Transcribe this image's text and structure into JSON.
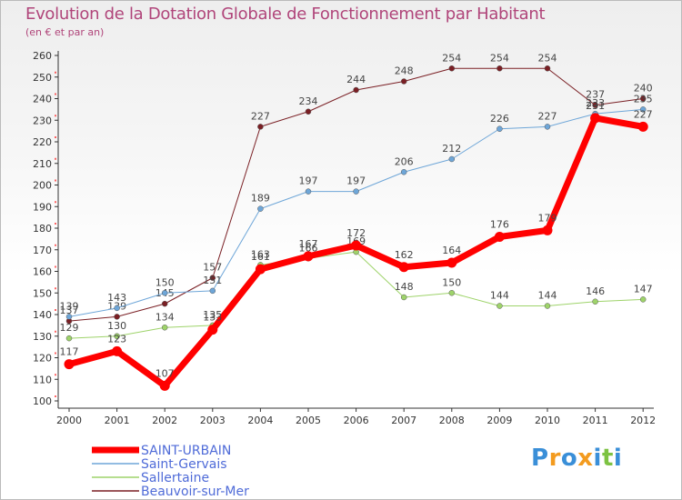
{
  "chart_data": {
    "type": "line",
    "title": "Evolution de la Dotation Globale de Fonctionnement par Habitant",
    "subtitle": "(en € et par an)",
    "xlabel": "",
    "ylabel": "",
    "ylim": [
      100,
      260
    ],
    "yticks": [
      "100",
      "110",
      "120",
      "130",
      "140",
      "150",
      "160",
      "170",
      "180",
      "190",
      "200",
      "210",
      "220",
      "230",
      "240",
      "250",
      "260"
    ],
    "categories": [
      "2000",
      "2001",
      "2002",
      "2003",
      "2004",
      "2005",
      "2006",
      "2007",
      "2008",
      "2009",
      "2010",
      "2011",
      "2012"
    ],
    "series": [
      {
        "name": "Beauvoir-sur-Mer",
        "color": "#7a1f24",
        "width": 1,
        "values": [
          137,
          139,
          145,
          157,
          227,
          234,
          244,
          248,
          254,
          254,
          254,
          237,
          240
        ],
        "labels": [
          "137",
          "139",
          "145",
          "157",
          "227",
          "234",
          "244",
          "248",
          "254",
          "254",
          "254",
          "237",
          "240"
        ]
      },
      {
        "name": "Saint-Gervais",
        "color": "#6ea6d8",
        "width": 1,
        "values": [
          139,
          143,
          150,
          151,
          189,
          197,
          197,
          206,
          212,
          226,
          227,
          233,
          235
        ],
        "labels": [
          "139",
          "143",
          "150",
          "151",
          "189",
          "197",
          "197",
          "206",
          "212",
          "226",
          "227",
          "233",
          "235"
        ]
      },
      {
        "name": "Sallertaine",
        "color": "#9ed36a",
        "width": 1,
        "values": [
          129,
          130,
          134,
          135,
          163,
          166,
          169,
          148,
          150,
          144,
          144,
          146,
          147
        ],
        "labels": [
          "129",
          "130",
          "134",
          "135",
          "163",
          "166",
          "169",
          "148",
          "150",
          "144",
          "144",
          "146",
          "147"
        ]
      },
      {
        "name": "SAINT-URBAIN",
        "color": "#ff0000",
        "width": 7,
        "values": [
          117,
          123,
          107,
          133,
          161,
          167,
          172,
          162,
          164,
          176,
          179,
          231,
          227
        ],
        "labels": [
          "117",
          "123",
          "107",
          "133",
          "161",
          "167",
          "172",
          "162",
          "164",
          "176",
          "179",
          "231",
          "227"
        ]
      }
    ],
    "legend": [
      "SAINT-URBAIN",
      "Saint-Gervais",
      "Sallertaine",
      "Beauvoir-sur-Mer"
    ],
    "legend_position": "bottom-left",
    "grid": false
  },
  "colors": {
    "title": "#b0457a",
    "legend_text": "#4f6bd8",
    "axis": "#333333",
    "tick_dash": "#ff0000",
    "brand_blue": "#3a8fd8",
    "brand_orange": "#f39b1f",
    "brand_green": "#7cc242"
  },
  "brand": {
    "letters": [
      {
        "ch": "P",
        "color": "#3a8fd8"
      },
      {
        "ch": "r",
        "color": "#f39b1f"
      },
      {
        "ch": "o",
        "color": "#3a8fd8"
      },
      {
        "ch": "x",
        "color": "#f39b1f"
      },
      {
        "ch": "i",
        "color": "#3a8fd8"
      },
      {
        "ch": "t",
        "color": "#7cc242"
      },
      {
        "ch": "i",
        "color": "#3a8fd8"
      }
    ]
  }
}
